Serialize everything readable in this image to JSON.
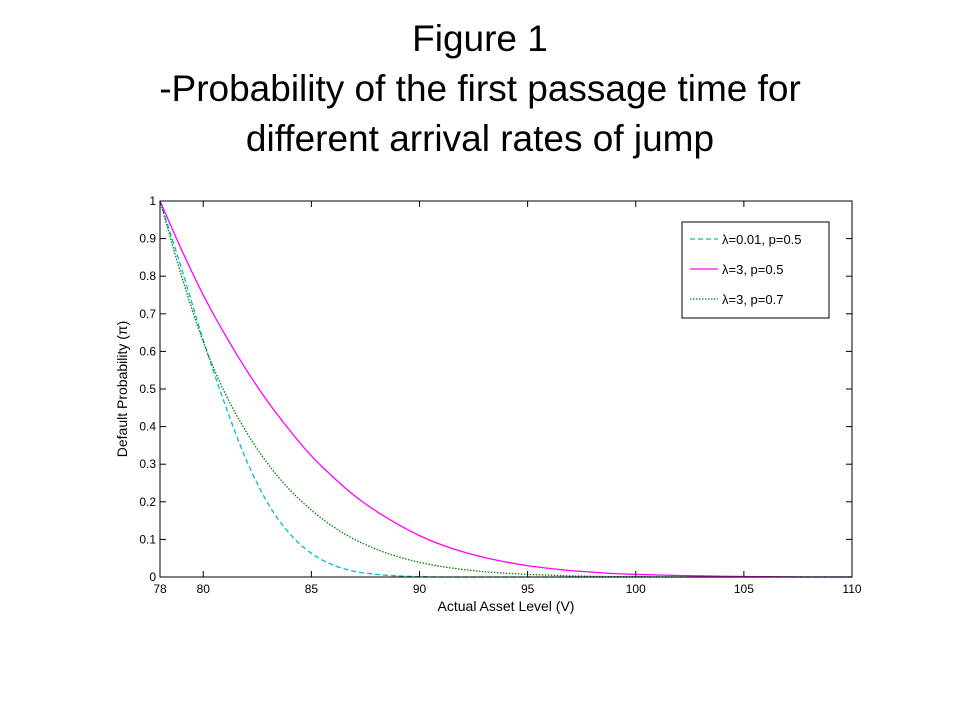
{
  "slide": {
    "title_lines": [
      "Figure 1",
      "-Probability of the first passage time for",
      "different arrival rates of jump"
    ]
  },
  "chart_data": {
    "type": "line",
    "xlabel": "Actual Asset Level (V)",
    "ylabel": "Default Probability (π)",
    "xlim": [
      78,
      110
    ],
    "ylim": [
      0,
      1
    ],
    "x_ticks": [
      78,
      80,
      85,
      90,
      95,
      100,
      105,
      110
    ],
    "y_ticks": [
      0,
      0.1,
      0.2,
      0.3,
      0.4,
      0.5,
      0.6,
      0.7,
      0.8,
      0.9,
      1
    ],
    "y_tick_labels": [
      "0",
      "0.1",
      "0.2",
      "0.3",
      "0.4",
      "0.5",
      "0.6",
      "0.7",
      "0.8",
      "0.9",
      "1"
    ],
    "grid": false,
    "legend_position": "top-right",
    "x": [
      78,
      79,
      80,
      81,
      82,
      83,
      84,
      85,
      86,
      87,
      88,
      89,
      90,
      91,
      92,
      93,
      94,
      95,
      96,
      97,
      98,
      99,
      100,
      102,
      104,
      106,
      108,
      110
    ],
    "series": [
      {
        "name": "λ=0.01, p=0.5",
        "color": "#00bfbf",
        "dash": "dashed",
        "values": [
          1.0,
          0.82,
          0.63,
          0.46,
          0.31,
          0.195,
          0.115,
          0.063,
          0.032,
          0.015,
          0.007,
          0.003,
          0.001,
          0,
          0,
          0,
          0,
          0,
          0,
          0,
          0,
          0,
          0,
          0,
          0,
          0,
          0,
          0
        ]
      },
      {
        "name": "λ=3, p=0.5",
        "color": "#ff00ff",
        "dash": "solid",
        "values": [
          1.0,
          0.87,
          0.75,
          0.645,
          0.55,
          0.465,
          0.39,
          0.322,
          0.266,
          0.216,
          0.175,
          0.14,
          0.11,
          0.086,
          0.067,
          0.052,
          0.04,
          0.03,
          0.023,
          0.017,
          0.013,
          0.009,
          0.007,
          0.004,
          0.002,
          0.001,
          0,
          0
        ]
      },
      {
        "name": "λ=3, p=0.7",
        "color": "#007f00",
        "dash": "dotted",
        "values": [
          1.0,
          0.8,
          0.625,
          0.49,
          0.385,
          0.3,
          0.232,
          0.178,
          0.134,
          0.1,
          0.074,
          0.054,
          0.039,
          0.028,
          0.02,
          0.014,
          0.01,
          0.007,
          0.005,
          0.003,
          0.002,
          0.001,
          0.001,
          0,
          0,
          0,
          0,
          0
        ]
      }
    ]
  }
}
